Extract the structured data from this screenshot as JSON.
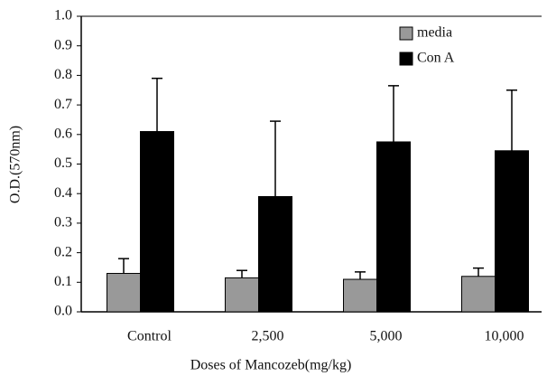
{
  "chart_data": {
    "type": "bar",
    "x_label": "Doses of Mancozeb(mg/kg)",
    "y_label": "O.D.(570nm)",
    "categories": [
      "Control",
      "2,500",
      "5,000",
      "10,000"
    ],
    "series": [
      {
        "name": "media",
        "color": "#999999",
        "values": [
          0.13,
          0.115,
          0.11,
          0.12
        ],
        "errors": [
          0.05,
          0.025,
          0.025,
          0.028
        ]
      },
      {
        "name": "Con A",
        "color": "#000000",
        "values": [
          0.61,
          0.39,
          0.575,
          0.545
        ],
        "errors": [
          0.18,
          0.255,
          0.19,
          0.205
        ]
      }
    ],
    "ylim": [
      0,
      1
    ],
    "yticks": [
      {
        "value": 0,
        "label": "0.0"
      },
      0.1,
      0.2,
      0.3,
      0.4,
      0.5,
      0.6,
      0.7,
      0.8,
      0.9,
      {
        "value": 1,
        "label": "1.0"
      }
    ],
    "legend": "upper right"
  }
}
